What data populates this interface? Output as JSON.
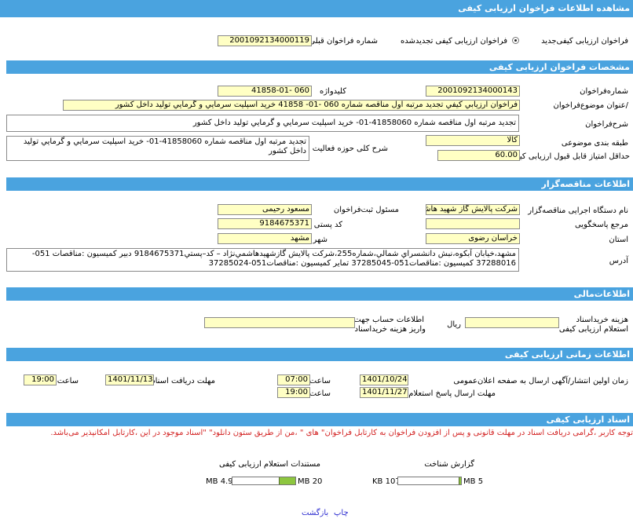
{
  "page_title": "مشاهده اطلاعات فراخوان ارزيابی کيفی",
  "call_type": {
    "label": "فراخوان  ارزيابی  کيفی‌جديد",
    "option_renewed": "فراخوان  ارزيابی  کيفی  تجديدشده",
    "selected": "renewed",
    "prev_call_label": "شماره فراخوان قبلی",
    "prev_call_value": "2001092134000119"
  },
  "specs": {
    "header": "مشخصات فراخوان ارزيابی کيفی",
    "call_number_label": "شماره‌فراخوان",
    "call_number_value": "2001092134000143",
    "keyword_label": "کليدواژه",
    "keyword_value": "41858-01- 060",
    "subject_label": "/عنوان  موضوع‌فراخوان",
    "subject_value": "فراخوان ارزيابي كيفي تجديد مرتبه اول مناقصه شماره 060 -01- 41858 خريد  اسپليت سرمايي و گرمايي توليد داخل كشور",
    "description_label": "شرح‌فراخوان",
    "description_value": "تجديد  مرتبه اول  مناقصه  شماره 41858060-01-  خريد  اسپليت  سرمايي و گرمايي  توليد داخل كشور",
    "category_label": "طبقه  بندی  موضوعی",
    "category_value": "كالا",
    "activity_label": "شرح  کلی  حوزه فعاليت",
    "activity_value": "تجديد  مرتبه اول  مناقصه  شماره 41858060-01-  خريد  اسپليت  سرمايي و گرمايي  توليد داخل كشور",
    "min_score_label": "حداقل  امتياز قابل  قبول  ارزيابی  کيفی",
    "min_score_value": "60.00"
  },
  "tenderer": {
    "header": "اطلاعات مناقصه‌گزار",
    "org_label": "نام  دستگاه  اجرايی  مناقصه‌گزار",
    "org_value": "شركت پالايش گاز شهيد هاشمي نژاد",
    "responsible_label": "مسئول  ثبت‌فراخوان",
    "responsible_value": "مسعود رحيمی",
    "reference_label": "مرجع پاسخگويی",
    "reference_value": "",
    "postal_label": "کد پستی",
    "postal_value": "9184675371",
    "province_label": "استان",
    "province_value": "خراسان رضوی",
    "city_label": "شهر",
    "city_value": "مشهد",
    "address_label": "آدرس",
    "address_value": "مشهد،خيابان آبكوه،نبش  دانشسراي  شمالي،شماره255،شركت پالايش  گازشهيدهاشمي‌نژاد – كد–پستي‌9184675371 دبير  كميسيون  :مناقصات 051-37288016  كميسيون  :مناقصات051-37285045  تماير  كميسيون  :مناقصات051-37285024"
  },
  "financial": {
    "header": "اطلاعات‌مالی",
    "fee_label": "هزينه خريداسناد",
    "fee_label2": "استعلام  ارزيابی کيفی",
    "fee_value": "",
    "currency": "ريال",
    "account_label": "اطلاعات حساب جهت",
    "account_label2": "واريز  هزينه خريداسناد",
    "account_value": ""
  },
  "timing": {
    "header": "اطلاعات  زمانی  ارزيابی کيفی",
    "publish_label": "زمان  اولين  انتشار/آگهی ارسال  به  صفحه اعلان‌عمومی",
    "publish_date": "1401/10/24",
    "publish_time": "07:00",
    "receive_label": "مهلت  دريافت اسناد",
    "receive_date": "1401/11/13",
    "receive_time": "19:00",
    "reply_label": "مهلت ارسال  پاسخ استعلام",
    "reply_date": "1401/11/27",
    "reply_time": "19:00",
    "time_label": "ساعت"
  },
  "documents": {
    "header": "اسناد ارزيابی کيفی",
    "notice": "توجه کاربر ،گرامی  دريافت اسناد در مهلت قانونی و پس از افزودن فراخوان به کارتابل فراخوان\" های \" ،من از طريق ستون دانلود\" \"اسناد موجود در اين ،کارتابل امکانپذير می‌باشد.",
    "col_identification": "گزارش شناخت",
    "col_inquiry": "مستندات  استعلام  ارزيابی کيفی",
    "ident_used": "107 KB",
    "ident_max": "5 MB",
    "ident_fraction": 0.02,
    "inquiry_used": "4.9 MB",
    "inquiry_max": "20 MB",
    "inquiry_fraction": 0.245
  },
  "actions": {
    "print": "چاپ",
    "back": "بازگشت"
  }
}
